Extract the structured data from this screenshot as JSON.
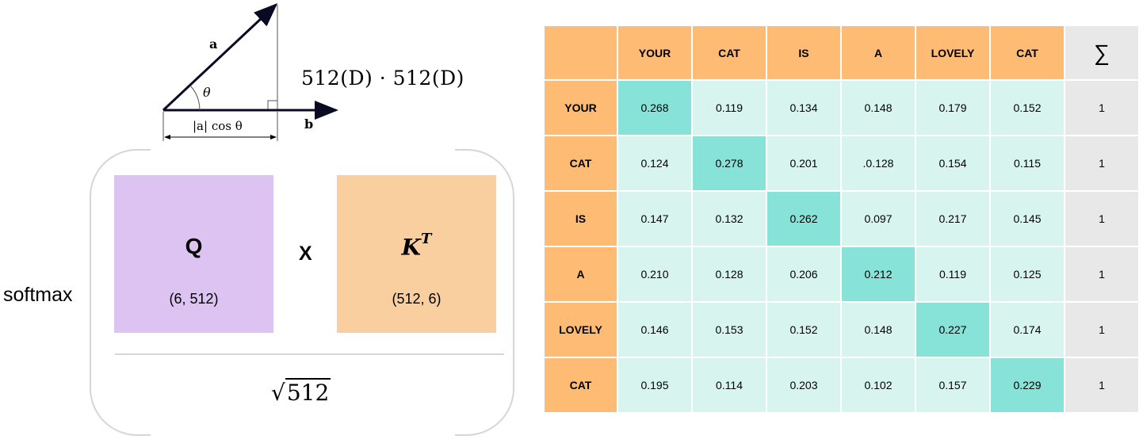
{
  "vector_diagram": {
    "label_a": "a",
    "label_b": "b",
    "label_theta": "θ",
    "projection_label": "|a| cos θ"
  },
  "dot_product_expression": "512(D) · 512(D)",
  "formula": {
    "function_label": "softmax",
    "query": {
      "label": "Q",
      "dims": "(6, 512)"
    },
    "operator": "X",
    "key": {
      "label": "K",
      "superscript": "T",
      "dims": "(512, 6)"
    },
    "denominator_radicand": "512"
  },
  "attention_table": {
    "sum_symbol": "∑",
    "column_headers": [
      "YOUR",
      "CAT",
      "IS",
      "A",
      "LOVELY",
      "CAT"
    ],
    "rows": [
      {
        "label": "YOUR",
        "values": [
          "0.268",
          "0.119",
          "0.134",
          "0.148",
          "0.179",
          "0.152"
        ],
        "sum": "1"
      },
      {
        "label": "CAT",
        "values": [
          "0.124",
          "0.278",
          "0.201",
          ".0.128",
          "0.154",
          "0.115"
        ],
        "sum": "1"
      },
      {
        "label": "IS",
        "values": [
          "0.147",
          "0.132",
          "0.262",
          "0.097",
          "0.217",
          "0.145"
        ],
        "sum": "1"
      },
      {
        "label": "A",
        "values": [
          "0.210",
          "0.128",
          "0.206",
          "0.212",
          "0.119",
          "0.125"
        ],
        "sum": "1"
      },
      {
        "label": "LOVELY",
        "values": [
          "0.146",
          "0.153",
          "0.152",
          "0.148",
          "0.227",
          "0.174"
        ],
        "sum": "1"
      },
      {
        "label": "CAT",
        "values": [
          "0.195",
          "0.114",
          "0.203",
          "0.102",
          "0.157",
          "0.229"
        ],
        "sum": "1"
      }
    ],
    "colors": {
      "header": "#fdbb73",
      "cell": "#d7f5ee",
      "diagonal": "#87e3d8",
      "sum": "#e8e8e8"
    }
  },
  "colors": {
    "query_matrix": "#dcc3f1",
    "key_matrix": "#f9cfa0",
    "bracket": "#d6d6d6"
  }
}
